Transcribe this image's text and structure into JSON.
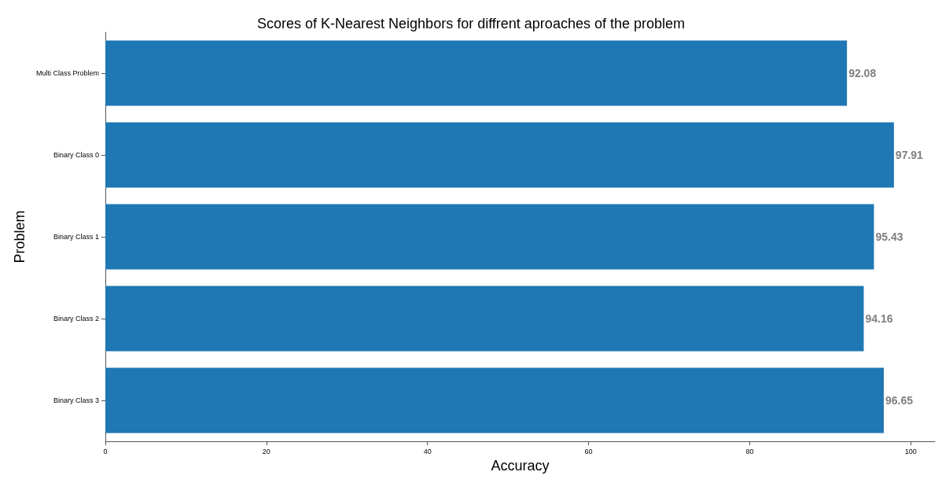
{
  "chart_data": {
    "type": "bar",
    "orientation": "horizontal",
    "title": "Scores of K-Nearest Neighbors for diffrent aproaches of the problem",
    "xlabel": "Accuracy",
    "ylabel": "Problem",
    "categories": [
      "Multi Class Problem",
      "Binary Class 0",
      "Binary Class 1",
      "Binary Class 2",
      "Binary Class 3"
    ],
    "values": [
      92.08,
      97.91,
      95.43,
      94.16,
      96.65
    ],
    "color": "#1f77b4",
    "data_labels": true,
    "xlim": [
      0,
      103
    ],
    "xticks": [
      0,
      20,
      40,
      60,
      80,
      100
    ],
    "grid": false
  }
}
